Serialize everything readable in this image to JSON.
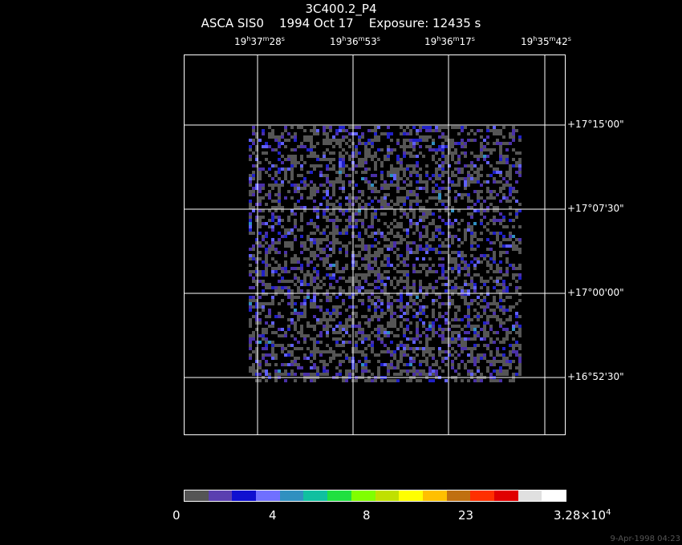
{
  "header": {
    "title": "3C400.2_P4",
    "subtitle": "ASCA SIS0    1994 Oct 17    Exposure: 12435 s"
  },
  "ra_axis": [
    {
      "h": "19",
      "m": "37",
      "s": "28"
    },
    {
      "h": "19",
      "m": "36",
      "s": "53"
    },
    {
      "h": "19",
      "m": "36",
      "s": "17"
    },
    {
      "h": "19",
      "m": "35",
      "s": "42"
    }
  ],
  "dec_axis": [
    "+17°15'00\"",
    "+17°07'30\"",
    "+17°00'00\"",
    "+16°52'30\""
  ],
  "colorbar": {
    "colors": [
      "#555555",
      "#5a3fb0",
      "#1010d0",
      "#7070ff",
      "#3090c0",
      "#10c0a0",
      "#20e040",
      "#80ff00",
      "#c0e000",
      "#ffff00",
      "#ffc000",
      "#c07010",
      "#ff3000",
      "#e00000",
      "#e0e0e0",
      "#ffffff"
    ],
    "labels": [
      "0",
      "4",
      "8",
      "23"
    ],
    "max_label_base": "3.28×10",
    "max_label_exp": "4"
  },
  "timestamp": "9-Apr-1998 04:23"
}
